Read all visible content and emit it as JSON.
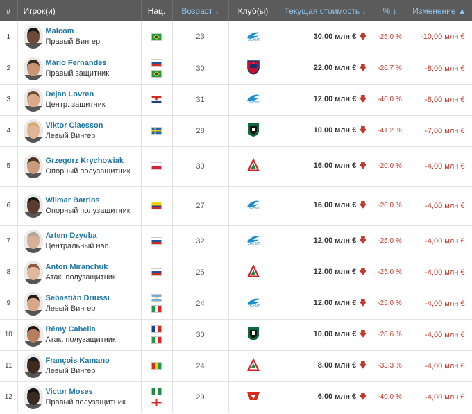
{
  "header": {
    "num": "#",
    "player": "Игрок(и)",
    "nat": "Нац.",
    "age": "Возраст ↕",
    "club": "Клуб(ы)",
    "value": "Текущая стоимость ↕",
    "pct": "% ↕",
    "change": "Изменение ▲"
  },
  "rows": [
    {
      "num": "1",
      "name": "Malcom",
      "pos": "Правый Вингер",
      "age": "23",
      "value": "30,00 млн €",
      "pct": "-25,0 %",
      "change": "-10,00 млн €",
      "flags": [
        "brazil-flag"
      ],
      "club": "zenit-crest"
    },
    {
      "num": "2",
      "name": "Mário Fernandes",
      "pos": "Правый защитник",
      "age": "30",
      "value": "22,00 млн €",
      "pct": "-26,7 %",
      "change": "-8,00 млн €",
      "flags": [
        "russia-flag",
        "brazil-flag"
      ],
      "club": "cska-crest"
    },
    {
      "num": "3",
      "name": "Dejan Lovren",
      "pos": "Центр. защитник",
      "age": "31",
      "value": "12,00 млн €",
      "pct": "-40,0 %",
      "change": "-8,00 млн €",
      "flags": [
        "croatia-flag"
      ],
      "club": "zenit-crest"
    },
    {
      "num": "4",
      "name": "Viktor Claesson",
      "pos": "Левый Вингер",
      "age": "28",
      "value": "10,00 млн €",
      "pct": "-41,2 %",
      "change": "-7,00 млн €",
      "flags": [
        "sweden-flag"
      ],
      "club": "krasnodar-crest"
    },
    {
      "num": "5",
      "name": "Grzegorz Krychowiak",
      "pos": "Опорный полузащитник",
      "age": "30",
      "value": "16,00 млн €",
      "pct": "-20,0 %",
      "change": "-4,00 млн €",
      "flags": [
        "poland-flag"
      ],
      "club": "lokomotiv-crest"
    },
    {
      "num": "6",
      "name": "Wilmar Barrios",
      "pos": "Опорный полузащитник",
      "age": "27",
      "value": "16,00 млн €",
      "pct": "-20,0 %",
      "change": "-4,00 млн €",
      "flags": [
        "colombia-flag"
      ],
      "club": "zenit-crest"
    },
    {
      "num": "7",
      "name": "Artem Dzyuba",
      "pos": "Центральный нап.",
      "age": "32",
      "value": "12,00 млн €",
      "pct": "-25,0 %",
      "change": "-4,00 млн €",
      "flags": [
        "russia-flag"
      ],
      "club": "zenit-crest"
    },
    {
      "num": "8",
      "name": "Anton Miranchuk",
      "pos": "Атак. полузащитник",
      "age": "25",
      "value": "12,00 млн €",
      "pct": "-25,0 %",
      "change": "-4,00 млн €",
      "flags": [
        "russia-flag"
      ],
      "club": "lokomotiv-crest"
    },
    {
      "num": "9",
      "name": "Sebastián Driussi",
      "pos": "Левый Вингер",
      "age": "24",
      "value": "12,00 млн €",
      "pct": "-25,0 %",
      "change": "-4,00 млн €",
      "flags": [
        "argentina-flag",
        "italy-flag"
      ],
      "club": "zenit-crest"
    },
    {
      "num": "10",
      "name": "Rémy Cabella",
      "pos": "Атак. полузащитник",
      "age": "30",
      "value": "10,00 млн €",
      "pct": "-28,6 %",
      "change": "-4,00 млн €",
      "flags": [
        "france-flag",
        "italy-flag"
      ],
      "club": "krasnodar-crest"
    },
    {
      "num": "11",
      "name": "François Kamano",
      "pos": "Левый Вингер",
      "age": "24",
      "value": "8,00 млн €",
      "pct": "-33,3 %",
      "change": "-4,00 млн €",
      "flags": [
        "guinea-flag"
      ],
      "club": "lokomotiv-crest"
    },
    {
      "num": "12",
      "name": "Victor Moses",
      "pos": "Правый полузащитник",
      "age": "29",
      "value": "6,00 млн €",
      "pct": "-40,0 %",
      "change": "-4,00 млн €",
      "flags": [
        "nigeria-flag",
        "england-flag"
      ],
      "club": "spartak-crest"
    }
  ]
}
